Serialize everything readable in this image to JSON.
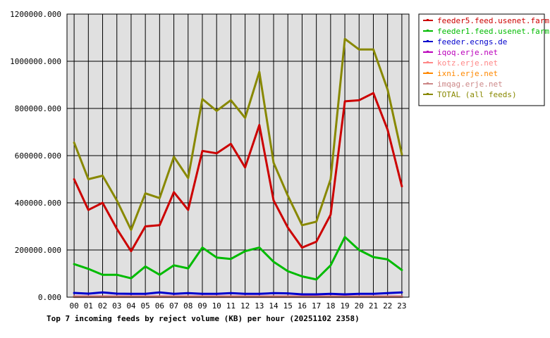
{
  "chart_data": {
    "type": "line",
    "title": "Top 7 incoming feeds by reject volume (KB) per hour (20251102 2358)",
    "xlabel": "",
    "ylabel": "",
    "categories": [
      "00",
      "01",
      "02",
      "03",
      "04",
      "05",
      "06",
      "07",
      "08",
      "09",
      "10",
      "11",
      "12",
      "13",
      "14",
      "15",
      "16",
      "17",
      "18",
      "19",
      "20",
      "21",
      "22",
      "23"
    ],
    "ylim": [
      0,
      1200000
    ],
    "yticks": [
      "0.000",
      "200000.000",
      "400000.000",
      "600000.000",
      "800000.000",
      "1000000.000",
      "1200000.000"
    ],
    "grid": true,
    "background": "#e0e0e0",
    "legend_position": "top-right",
    "series": [
      {
        "name": "feeder5.feed.usenet.farm",
        "color": "#cc0000",
        "values": [
          500000,
          370000,
          400000,
          290000,
          195000,
          300000,
          305000,
          445000,
          370000,
          620000,
          610000,
          650000,
          550000,
          730000,
          410000,
          295000,
          210000,
          235000,
          350000,
          830000,
          835000,
          865000,
          710000,
          470000
        ]
      },
      {
        "name": "feeder1.feed.usenet.farm",
        "color": "#00bb00",
        "values": [
          140000,
          120000,
          95000,
          95000,
          80000,
          130000,
          95000,
          135000,
          122000,
          210000,
          168000,
          162000,
          195000,
          210000,
          150000,
          110000,
          88000,
          75000,
          135000,
          255000,
          200000,
          170000,
          160000,
          115000
        ]
      },
      {
        "name": "feeder.ecngs.de",
        "color": "#0000cc",
        "values": [
          18000,
          15000,
          20000,
          15000,
          14000,
          14000,
          20000,
          14000,
          17000,
          14000,
          14000,
          17000,
          14000,
          14000,
          17000,
          16000,
          12000,
          12000,
          14000,
          12000,
          14000,
          14000,
          17000,
          20000
        ]
      },
      {
        "name": "iqoq.erje.net",
        "color": "#bb00bb",
        "values": [
          3000,
          3000,
          3000,
          3000,
          3000,
          3000,
          3000,
          3000,
          3000,
          3000,
          3000,
          3000,
          3000,
          3000,
          3000,
          3000,
          3000,
          3000,
          3000,
          3000,
          3000,
          3000,
          3000,
          3000
        ]
      },
      {
        "name": "kotz.erje.net",
        "color": "#ff8888",
        "values": [
          2000,
          2000,
          2000,
          2000,
          2000,
          2000,
          2000,
          2000,
          2000,
          2000,
          2000,
          2000,
          2000,
          2000,
          2000,
          2000,
          2000,
          2000,
          2000,
          2000,
          2000,
          2000,
          2000,
          2000
        ]
      },
      {
        "name": "ixni.erje.net",
        "color": "#ff8800",
        "values": [
          1500,
          1500,
          1500,
          1500,
          1500,
          1500,
          1500,
          1500,
          1500,
          1500,
          1500,
          1500,
          1500,
          1500,
          1500,
          1500,
          1500,
          1500,
          1500,
          1500,
          1500,
          1500,
          1500,
          1500
        ]
      },
      {
        "name": "imqag.erje.net",
        "color": "#cc8888",
        "values": [
          1000,
          1000,
          1000,
          1000,
          1000,
          1000,
          1000,
          1000,
          1000,
          1000,
          1000,
          1000,
          1000,
          1000,
          1000,
          1000,
          1000,
          1000,
          1000,
          1000,
          1000,
          1000,
          1000,
          1000
        ]
      },
      {
        "name": "TOTAL (all feeds)",
        "color": "#888800",
        "values": [
          655000,
          500000,
          515000,
          410000,
          285000,
          440000,
          420000,
          595000,
          505000,
          840000,
          790000,
          835000,
          760000,
          955000,
          570000,
          430000,
          305000,
          320000,
          500000,
          1095000,
          1050000,
          1050000,
          880000,
          605000
        ]
      }
    ]
  }
}
